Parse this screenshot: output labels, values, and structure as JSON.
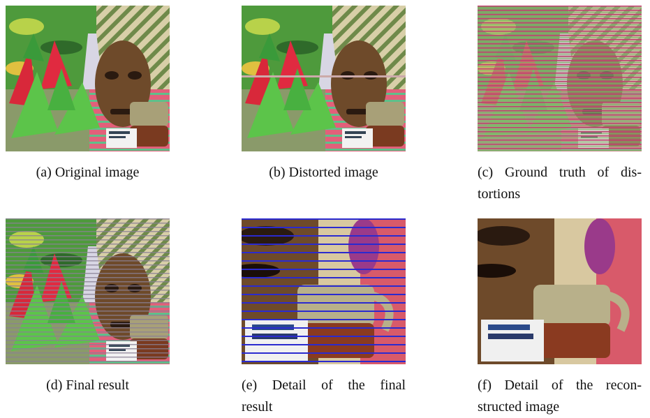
{
  "figures": [
    {
      "caption": [
        "(a) Original image"
      ]
    },
    {
      "caption": [
        "(b) Distorted image"
      ]
    },
    {
      "caption": [
        "(c) Ground truth of dis-",
        "tortions"
      ]
    },
    {
      "caption": [
        "(d) Final result"
      ]
    },
    {
      "caption": [
        "(e) Detail of the final",
        "result"
      ]
    },
    {
      "caption": [
        "(f) Detail of the recon-",
        "structed image"
      ]
    }
  ]
}
